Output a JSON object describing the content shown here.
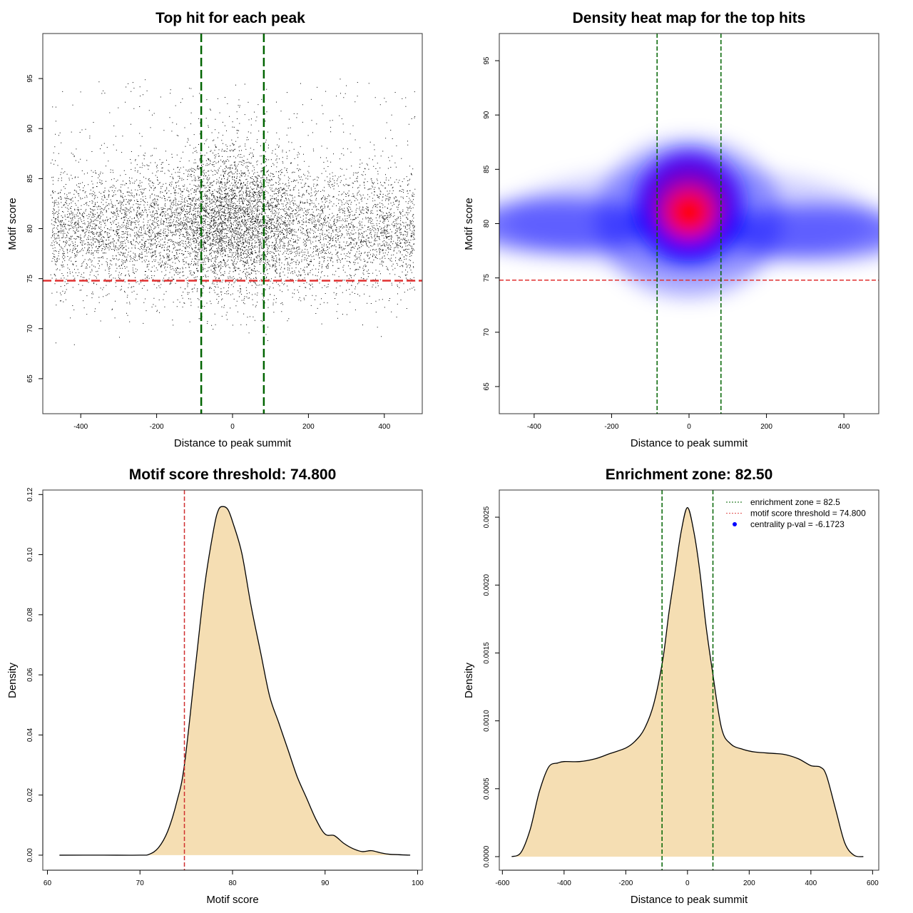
{
  "chart_data": [
    {
      "type": "scatter",
      "title": "Top hit for each peak",
      "xlabel": "Distance to peak summit",
      "ylabel": "Motif score",
      "xlim": [
        -500,
        500
      ],
      "ylim": [
        61.5,
        99.5
      ],
      "xticks": [
        -400,
        -200,
        0,
        200,
        400
      ],
      "yticks": [
        65,
        70,
        75,
        80,
        85,
        90,
        95
      ],
      "enrichment_zone": 82.5,
      "score_threshold": 74.8,
      "n_points_approx": 9000,
      "colors": {
        "points": "#000000",
        "zone_lines": "#006400",
        "threshold_line": "#e03030"
      }
    },
    {
      "type": "heatmap",
      "title": "Density heat map for the top hits",
      "xlabel": "Distance to peak summit",
      "ylabel": "Motif score",
      "xlim": [
        -490,
        490
      ],
      "ylim": [
        62.5,
        97.5
      ],
      "xticks": [
        -400,
        -200,
        0,
        200,
        400
      ],
      "yticks": [
        65,
        70,
        75,
        80,
        85,
        90,
        95
      ],
      "enrichment_zone": 82.5,
      "score_threshold": 74.8,
      "colors": {
        "low": "#ffffff",
        "mid": "#0000ff",
        "high": "#ff0000",
        "zone_lines": "#006400",
        "threshold_line": "#e03030"
      }
    },
    {
      "type": "area",
      "title": "Motif score threshold: 74.800",
      "xlabel": "Motif score",
      "ylabel": "Density",
      "xlim": [
        59.5,
        100.5
      ],
      "ylim": [
        -0.005,
        0.1215
      ],
      "xticks": [
        60,
        70,
        80,
        90,
        100
      ],
      "yticks": [
        0.0,
        0.02,
        0.04,
        0.06,
        0.08,
        0.1,
        0.12
      ],
      "ytick_labels": [
        "0.00",
        "0.02",
        "0.04",
        "0.06",
        "0.08",
        "0.10",
        "0.12"
      ],
      "x": [
        61.3,
        66,
        70,
        71,
        72,
        73,
        74,
        74.8,
        76,
        77,
        78,
        78.5,
        79,
        79.5,
        80,
        81,
        82,
        83,
        84,
        85,
        86,
        87,
        88,
        89,
        90,
        91,
        92,
        93,
        94,
        95,
        96,
        97,
        99.2
      ],
      "y": [
        0.0,
        0.0,
        0.0,
        0.0003,
        0.0025,
        0.008,
        0.018,
        0.03,
        0.063,
        0.09,
        0.109,
        0.115,
        0.116,
        0.115,
        0.111,
        0.1005,
        0.083,
        0.068,
        0.053,
        0.044,
        0.035,
        0.026,
        0.019,
        0.012,
        0.007,
        0.0065,
        0.004,
        0.0022,
        0.0012,
        0.0015,
        0.0008,
        0.0003,
        0.0
      ],
      "threshold": 74.8,
      "colors": {
        "fill": "#f5deb3",
        "line": "#000000",
        "threshold_line": "#d03030"
      }
    },
    {
      "type": "area",
      "title": "Enrichment zone: 82.50",
      "xlabel": "Distance to peak summit",
      "ylabel": "Density",
      "xlim": [
        -610,
        620
      ],
      "ylim": [
        -0.0001,
        0.0027
      ],
      "xticks": [
        -600,
        -400,
        -200,
        0,
        200,
        400,
        600
      ],
      "yticks": [
        0.0,
        0.0005,
        0.001,
        0.0015,
        0.002,
        0.0025
      ],
      "ytick_labels": [
        "0.0000",
        "0.0005",
        "0.0010",
        "0.0015",
        "0.0020",
        "0.0025"
      ],
      "x": [
        -570,
        -540,
        -510,
        -480,
        -450,
        -420,
        -400,
        -350,
        -300,
        -250,
        -200,
        -170,
        -140,
        -110,
        -80,
        -60,
        -40,
        -20,
        0,
        20,
        40,
        60,
        80,
        110,
        140,
        180,
        220,
        280,
        320,
        360,
        400,
        430,
        450,
        480,
        510,
        540,
        570
      ],
      "y": [
        0.0,
        3e-05,
        0.0002,
        0.00048,
        0.00066,
        0.00069,
        0.0007,
        0.0007,
        0.00072,
        0.00076,
        0.0008,
        0.00085,
        0.00094,
        0.00112,
        0.00145,
        0.0018,
        0.0021,
        0.0024,
        0.00257,
        0.0024,
        0.0021,
        0.0017,
        0.00138,
        0.00095,
        0.00083,
        0.00079,
        0.00077,
        0.00076,
        0.00075,
        0.00072,
        0.00067,
        0.00066,
        0.0006,
        0.00035,
        0.0001,
        1e-05,
        0.0
      ],
      "enrichment_zone": 82.5,
      "colors": {
        "fill": "#f5deb3",
        "line": "#000000",
        "zone_lines": "#006400",
        "threshold_line": "#e05050",
        "pval_point": "#0000ff"
      },
      "legend": {
        "position": "top-right",
        "entries": [
          "enrichment zone = 82.5",
          "motif score threshold = 74.800",
          "centrality p-val = -6.1723"
        ]
      }
    }
  ]
}
